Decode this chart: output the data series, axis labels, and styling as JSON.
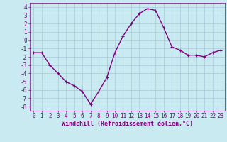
{
  "x": [
    0,
    1,
    2,
    3,
    4,
    5,
    6,
    7,
    8,
    9,
    10,
    11,
    12,
    13,
    14,
    15,
    16,
    17,
    18,
    19,
    20,
    21,
    22,
    23
  ],
  "y": [
    -1.5,
    -1.5,
    -3.0,
    -4.0,
    -5.0,
    -5.5,
    -6.2,
    -7.7,
    -6.2,
    -4.5,
    -1.5,
    0.5,
    2.0,
    3.2,
    3.8,
    3.6,
    1.5,
    -0.8,
    -1.2,
    -1.8,
    -1.8,
    -2.0,
    -1.5,
    -1.2
  ],
  "line_color": "#800080",
  "marker": "+",
  "marker_color": "#800080",
  "bg_color": "#c8eaf0",
  "grid_color": "#a8c8d8",
  "xlabel": "Windchill (Refroidissement éolien,°C)",
  "ylim": [
    -8.5,
    4.5
  ],
  "xlim": [
    -0.5,
    23.5
  ],
  "yticks": [
    -8,
    -7,
    -6,
    -5,
    -4,
    -3,
    -2,
    -1,
    0,
    1,
    2,
    3,
    4
  ],
  "xticks": [
    0,
    1,
    2,
    3,
    4,
    5,
    6,
    7,
    8,
    9,
    10,
    11,
    12,
    13,
    14,
    15,
    16,
    17,
    18,
    19,
    20,
    21,
    22,
    23
  ],
  "tick_label_color": "#800080",
  "axis_label_color": "#800080",
  "linewidth": 1.0,
  "markersize": 3.5,
  "tick_fontsize": 5.5,
  "xlabel_fontsize": 6.0
}
